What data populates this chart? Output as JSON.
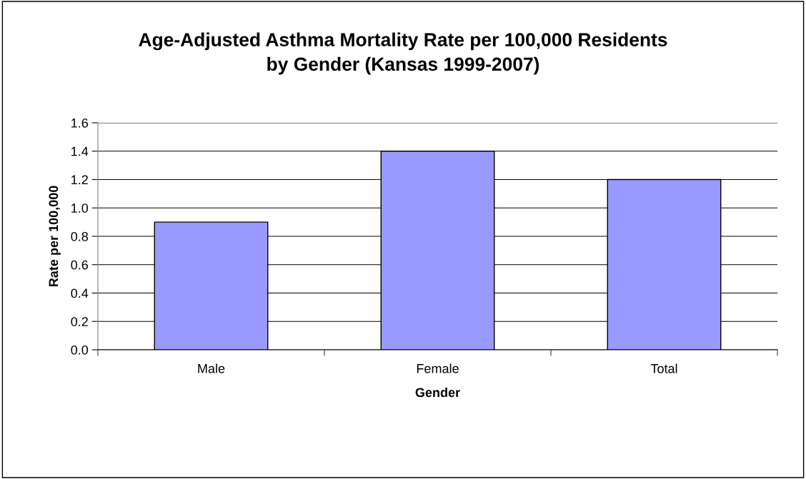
{
  "chart_data": {
    "type": "bar",
    "title": "Age-Adjusted Asthma Mortality Rate per 100,000 Residents\nby Gender (Kansas 1999-2007)",
    "xlabel": "Gender",
    "ylabel": "Rate per 100,000",
    "categories": [
      "Male",
      "Female",
      "Total"
    ],
    "values": [
      0.9,
      1.4,
      1.2
    ],
    "color": "#9999ff",
    "ylim": [
      0,
      1.6
    ],
    "yticks": [
      {
        "value": 0,
        "label": "0.0"
      },
      {
        "value": 0.2,
        "label": "0.2"
      },
      {
        "value": 0.4,
        "label": "0.4"
      },
      {
        "value": 0.6,
        "label": "0.6"
      },
      {
        "value": 0.8,
        "label": "0.8"
      },
      {
        "value": 1.0,
        "label": "1.0"
      },
      {
        "value": 1.2,
        "label": "1.2"
      },
      {
        "value": 1.4,
        "label": "1.4"
      },
      {
        "value": 1.6,
        "label": "1.6"
      }
    ],
    "grid": "y",
    "legend": false
  }
}
